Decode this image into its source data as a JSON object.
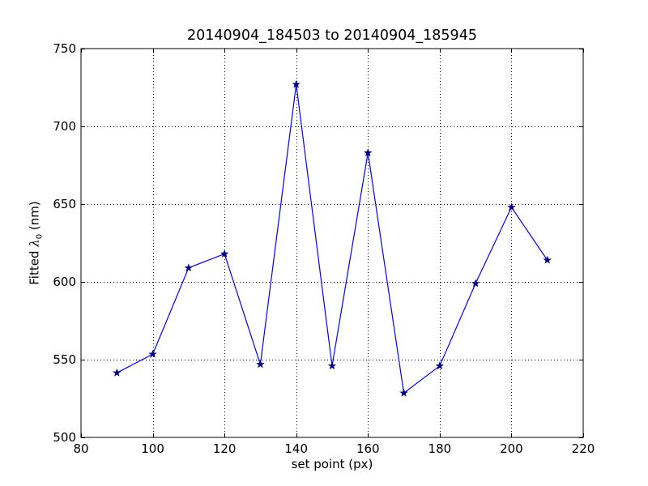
{
  "chart_data": {
    "type": "line",
    "title": "20140904_184503 to 20140904_185945",
    "xlabel": "set point (px)",
    "ylabel_prefix": "Fitted ",
    "ylabel_symbol": "λ",
    "ylabel_subscript": "0",
    "ylabel_suffix": " (nm)",
    "xlim": [
      80,
      220
    ],
    "ylim": [
      500,
      750
    ],
    "xticks": [
      80,
      100,
      120,
      140,
      160,
      180,
      200,
      220
    ],
    "yticks": [
      500,
      550,
      600,
      650,
      700,
      750
    ],
    "grid": true,
    "grid_style": "dotted",
    "line_color": "#0000ff",
    "marker": "star",
    "marker_color": "#000080",
    "series": [
      {
        "x": [
          90,
          100,
          110,
          120,
          130,
          140,
          150,
          160,
          170,
          180,
          190,
          200,
          210
        ],
        "y": [
          541.5,
          553.5,
          609,
          618,
          547,
          727,
          546,
          683,
          528.5,
          546,
          599,
          648,
          614
        ]
      }
    ]
  }
}
